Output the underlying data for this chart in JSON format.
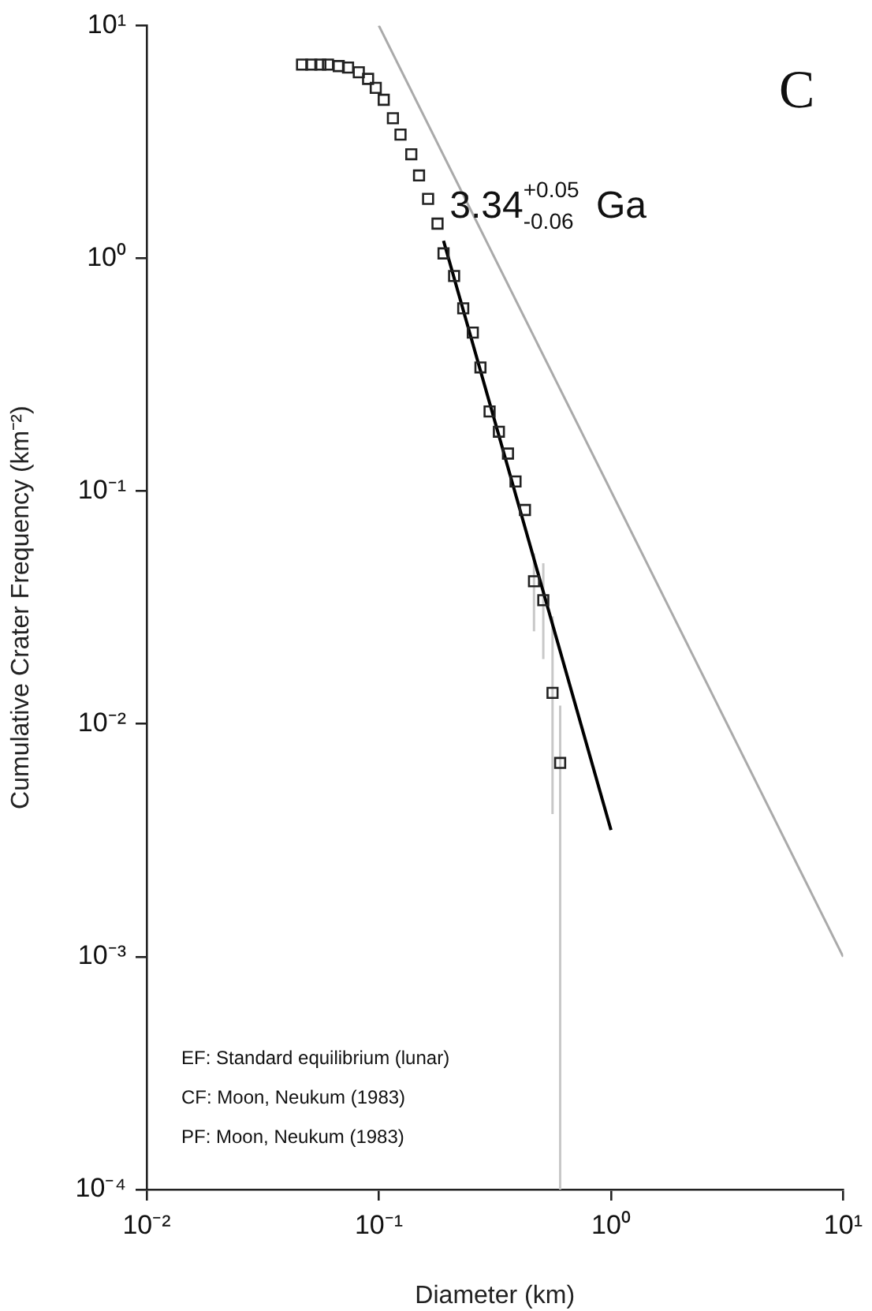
{
  "chart_data": {
    "type": "scatter",
    "xlabel": "Diameter (km)",
    "ylabel": "Cumulative Crater Frequency (km⁻²)",
    "log": "xy",
    "xlim": [
      0.01,
      10
    ],
    "ylim": [
      0.0001,
      10
    ],
    "xticks": [
      {
        "value": 0.01,
        "label": "10⁻²"
      },
      {
        "value": 0.1,
        "label": "10⁻¹"
      },
      {
        "value": 1,
        "label": "10⁰"
      },
      {
        "value": 10,
        "label": "10¹"
      }
    ],
    "yticks": [
      {
        "value": 0.0001,
        "label": "10⁻⁴"
      },
      {
        "value": 0.001,
        "label": "10⁻³"
      },
      {
        "value": 0.01,
        "label": "10⁻²"
      },
      {
        "value": 0.1,
        "label": "10⁻¹"
      },
      {
        "value": 1,
        "label": "10⁰"
      },
      {
        "value": 10,
        "label": "10¹"
      }
    ],
    "grid": false,
    "legend": false,
    "series": [
      {
        "marker": "square",
        "color": "#222222",
        "x": [
          0.0467,
          0.0512,
          0.056,
          0.0604,
          0.0672,
          0.0737,
          0.082,
          0.0899,
          0.097,
          0.105,
          0.115,
          0.124,
          0.138,
          0.149,
          0.163,
          0.179,
          0.19,
          0.211,
          0.231,
          0.254,
          0.274,
          0.3,
          0.329,
          0.36,
          0.388,
          0.426,
          0.466,
          0.511,
          0.56,
          0.604
        ],
        "values": [
          6.8,
          6.8,
          6.8,
          6.8,
          6.7,
          6.6,
          6.3,
          5.9,
          5.4,
          4.8,
          4.0,
          3.4,
          2.8,
          2.27,
          1.8,
          1.41,
          1.05,
          0.84,
          0.61,
          0.48,
          0.34,
          0.22,
          0.18,
          0.145,
          0.11,
          0.083,
          0.041,
          0.034,
          0.0136,
          0.0068
        ],
        "errors": [
          null,
          null,
          null,
          null,
          null,
          null,
          null,
          null,
          null,
          null,
          null,
          null,
          null,
          null,
          null,
          null,
          null,
          null,
          null,
          null,
          null,
          null,
          null,
          null,
          null,
          null,
          [
            0.025,
            0.054
          ],
          [
            0.019,
            0.049
          ],
          [
            0.0041,
            0.029
          ],
          [
            0.0001,
            0.012
          ]
        ]
      },
      {
        "type": "line",
        "color": "#000000",
        "x": [
          0.19,
          1.0
        ],
        "values": [
          1.19,
          0.0035
        ]
      },
      {
        "type": "line",
        "color": "#aaaaaa",
        "x": [
          0.1,
          10
        ],
        "values": [
          10,
          0.001
        ]
      }
    ],
    "annotations": [
      "3.34$^{+0.05}$$_{-0.06}$ Ga",
      "C",
      "EF: Standard equilibrium (lunar)",
      "CF: Moon, Neukum (1983)",
      "PF: Moon, Neukum (1983)"
    ]
  }
}
